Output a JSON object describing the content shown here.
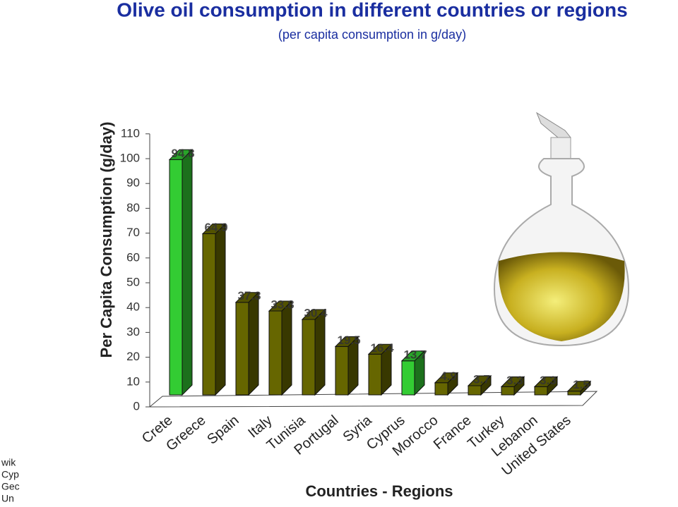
{
  "chart_data": {
    "type": "bar3d",
    "title": "Olive oil consumption in different countries or regions",
    "subtitle": "(per capita consumption in g/day)",
    "y_label": "Per Capita Consumption (g/day)",
    "x_label": "Countries - Regions",
    "categories": [
      "Crete",
      "Greece",
      "Spain",
      "Italy",
      "Tunisia",
      "Portugal",
      "Syria",
      "Cyprus",
      "Morocco",
      "France",
      "Turkey",
      "Lebanon",
      "United States"
    ],
    "values": [
      94.8,
      64.9,
      37.3,
      33.8,
      30.4,
      19.5,
      16.4,
      13.7,
      4.9,
      3.7,
      3.3,
      3.3,
      1.5
    ],
    "colors": [
      "#33cc33",
      "#666600",
      "#666600",
      "#666600",
      "#666600",
      "#666600",
      "#666600",
      "#33cc33",
      "#666600",
      "#666600",
      "#666600",
      "#666600",
      "#666600"
    ],
    "ylim": [
      0,
      110
    ],
    "yticks": [
      0,
      10,
      20,
      30,
      40,
      50,
      60,
      70,
      80,
      90,
      100,
      110
    ],
    "footnote_lines": [
      "wik",
      "Cyp",
      "Gec",
      "Un"
    ]
  }
}
